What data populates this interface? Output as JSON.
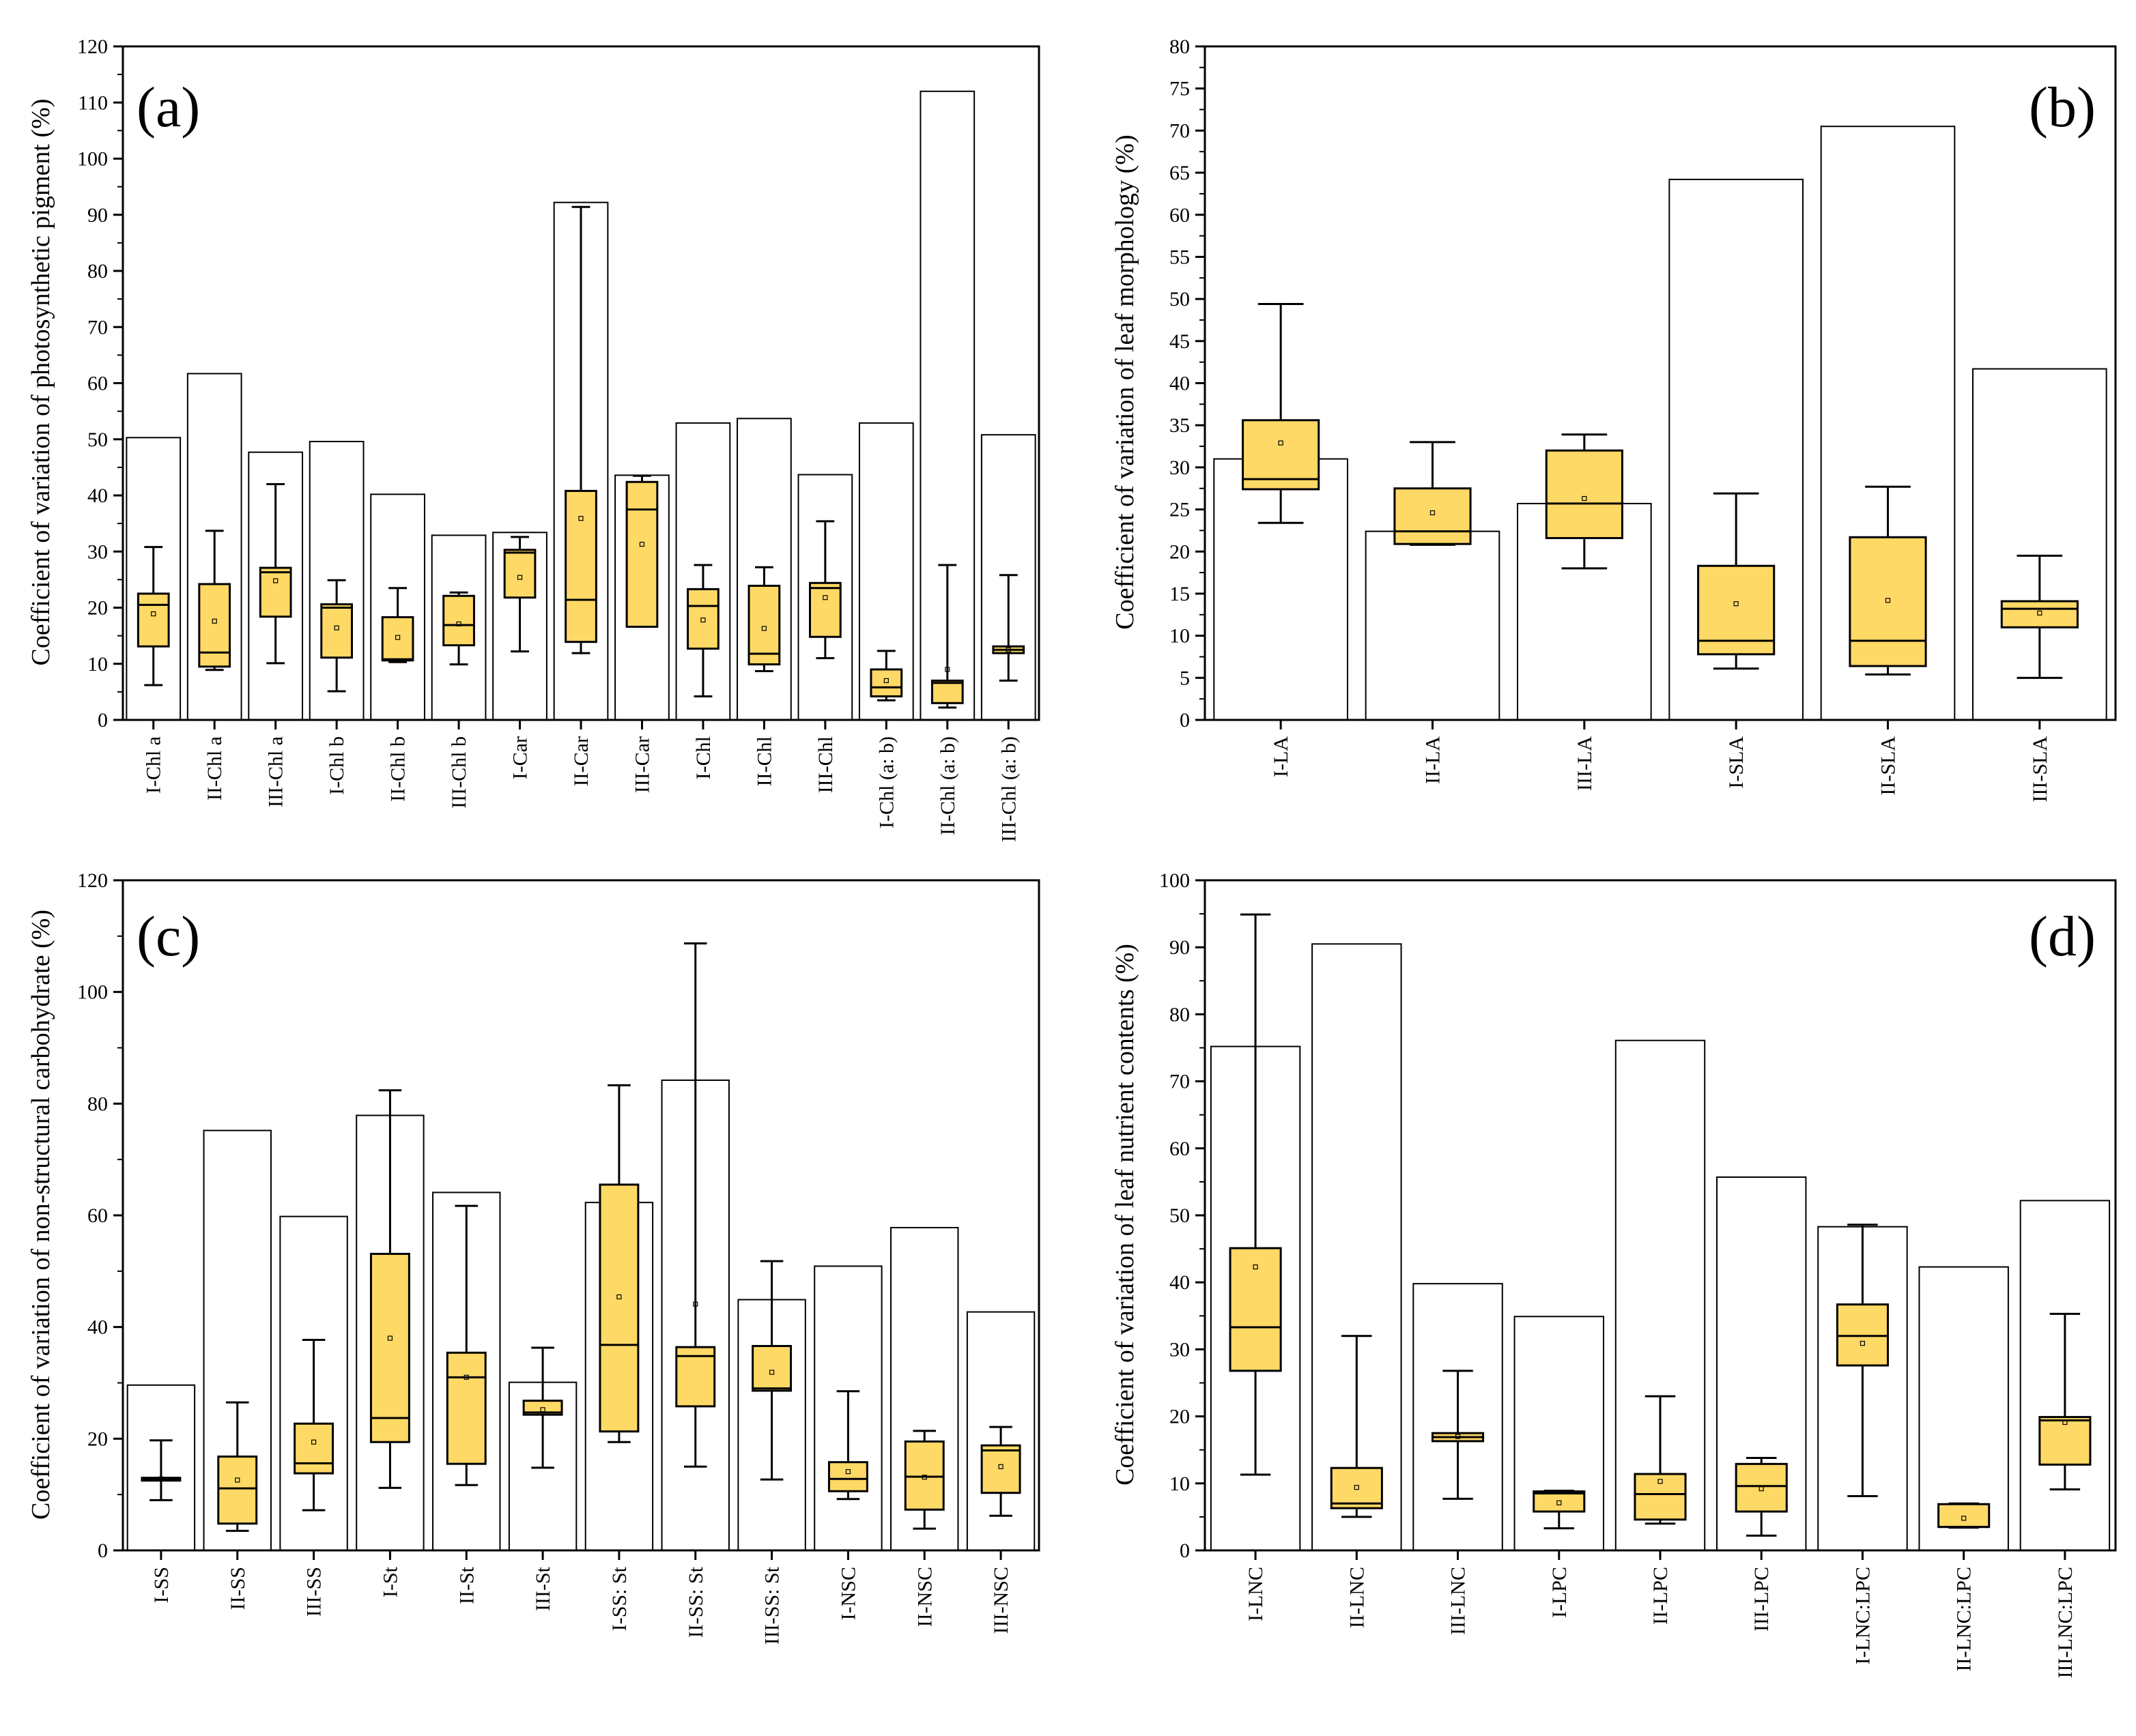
{
  "colors": {
    "box_fill": "#FFD966",
    "bar_stroke": "#000000",
    "background": "#FFFFFF"
  },
  "chart_data": [
    {
      "panel": "(a)",
      "type": "bar+box",
      "ylabel": "Coefficient of variation of photosynthetic pigment (%)",
      "ylim": [
        0,
        120
      ],
      "ytick_step": 10,
      "ytick_labels": [
        "0",
        "10",
        "20",
        "30",
        "40",
        "50",
        "60",
        "70",
        "80",
        "90",
        "100",
        "110",
        "120"
      ],
      "categories": [
        "I-Chl a",
        "II-Chl a",
        "III-Chl a",
        "I-Chl b",
        "II-Chl b",
        "III-Chl b",
        "I-Car",
        "II-Car",
        "III-Car",
        "I-Chl",
        "II-Chl",
        "III-Chl",
        "I-Chl (a: b)",
        "II-Chl (a: b)",
        "III-Chl (a: b)"
      ],
      "bar_values": [
        50.3,
        61.7,
        47.7,
        49.6,
        40.2,
        32.9,
        33.4,
        92.2,
        43.6,
        52.9,
        53.7,
        43.7,
        52.9,
        112.0,
        50.8
      ],
      "boxes": [
        {
          "min": 6.2,
          "q1": 13.1,
          "median": 20.5,
          "q3": 22.5,
          "max": 30.8,
          "mean": 18.9
        },
        {
          "min": 8.9,
          "q1": 9.5,
          "median": 12.0,
          "q3": 24.2,
          "max": 33.7,
          "mean": 17.6
        },
        {
          "min": 10.1,
          "q1": 18.4,
          "median": 26.3,
          "q3": 27.1,
          "max": 42.0,
          "mean": 24.8
        },
        {
          "min": 5.1,
          "q1": 11.1,
          "median": 20.0,
          "q3": 20.6,
          "max": 24.9,
          "mean": 16.4
        },
        {
          "min": 10.3,
          "q1": 10.6,
          "median": 10.8,
          "q3": 18.3,
          "max": 23.5,
          "mean": 14.7
        },
        {
          "min": 9.9,
          "q1": 13.3,
          "median": 16.9,
          "q3": 22.1,
          "max": 22.7,
          "mean": 17.1
        },
        {
          "min": 12.2,
          "q1": 21.8,
          "median": 29.8,
          "q3": 30.3,
          "max": 32.6,
          "mean": 25.4
        },
        {
          "min": 11.9,
          "q1": 13.9,
          "median": 21.4,
          "q3": 40.8,
          "max": 91.4,
          "mean": 35.9
        },
        {
          "min": 16.6,
          "q1": 16.6,
          "median": 37.5,
          "q3": 42.4,
          "max": 43.5,
          "mean": 31.3
        },
        {
          "min": 4.2,
          "q1": 12.7,
          "median": 20.3,
          "q3": 23.3,
          "max": 27.6,
          "mean": 17.8
        },
        {
          "min": 8.7,
          "q1": 9.9,
          "median": 11.8,
          "q3": 23.9,
          "max": 27.2,
          "mean": 16.3
        },
        {
          "min": 11.0,
          "q1": 14.8,
          "median": 23.5,
          "q3": 24.4,
          "max": 35.4,
          "mean": 21.8
        },
        {
          "min": 3.5,
          "q1": 4.2,
          "median": 5.8,
          "q3": 9.0,
          "max": 12.3,
          "mean": 7.0
        },
        {
          "min": 2.2,
          "q1": 3.0,
          "median": 6.6,
          "q3": 7.0,
          "max": 27.6,
          "mean": 9.0
        },
        {
          "min": 7.0,
          "q1": 11.9,
          "median": 12.5,
          "q3": 13.1,
          "max": 25.8,
          "mean": 12.5
        }
      ]
    },
    {
      "panel": "(b)",
      "type": "bar+box",
      "ylabel": "Coefficient of variation of leaf morphology (%)",
      "ylim": [
        0,
        80
      ],
      "ytick_step": 5,
      "ytick_labels": [
        "0",
        "5",
        "10",
        "15",
        "20",
        "25",
        "30",
        "35",
        "40",
        "45",
        "50",
        "55",
        "60",
        "65",
        "70",
        "75",
        "80"
      ],
      "categories": [
        "I-LA",
        "II-LA",
        "III-LA",
        "I-SLA",
        "II-SLA",
        "III-SLA"
      ],
      "bar_values": [
        31.0,
        22.4,
        25.7,
        64.2,
        70.5,
        41.7
      ],
      "boxes": [
        {
          "min": 23.4,
          "q1": 27.4,
          "median": 28.6,
          "q3": 35.6,
          "max": 49.4,
          "mean": 32.9
        },
        {
          "min": 20.8,
          "q1": 20.9,
          "median": 22.4,
          "q3": 27.5,
          "max": 33.0,
          "mean": 24.6
        },
        {
          "min": 18.0,
          "q1": 21.6,
          "median": 25.7,
          "q3": 32.0,
          "max": 33.9,
          "mean": 26.3
        },
        {
          "min": 6.1,
          "q1": 7.8,
          "median": 9.4,
          "q3": 18.3,
          "max": 26.9,
          "mean": 13.8
        },
        {
          "min": 5.4,
          "q1": 6.4,
          "median": 9.4,
          "q3": 21.7,
          "max": 27.7,
          "mean": 14.2
        },
        {
          "min": 5.0,
          "q1": 11.0,
          "median": 13.2,
          "q3": 14.1,
          "max": 19.5,
          "mean": 12.7
        }
      ]
    },
    {
      "panel": "(c)",
      "type": "bar+box",
      "ylabel": "Coefficient of variation of non-structural carbohydrate (%)",
      "ylim": [
        0,
        120
      ],
      "ytick_step": 20,
      "ytick_labels": [
        "0",
        "20",
        "40",
        "60",
        "80",
        "100",
        "120"
      ],
      "categories": [
        "I-SS",
        "II-SS",
        "III-SS",
        "I-St",
        "II-St",
        "III-St",
        "I-SS: St",
        "II-SS: St",
        "III-SS: St",
        "I-NSC",
        "II-NSC",
        "III-NSC"
      ],
      "bar_values": [
        29.6,
        75.2,
        59.8,
        77.9,
        64.1,
        30.1,
        62.3,
        84.2,
        44.9,
        50.9,
        57.8,
        42.7
      ],
      "boxes": [
        {
          "min": 9.0,
          "q1": 12.5,
          "median": 12.8,
          "q3": 13.0,
          "max": 19.7,
          "mean": 12.8
        },
        {
          "min": 3.5,
          "q1": 4.8,
          "median": 11.1,
          "q3": 16.8,
          "max": 26.5,
          "mean": 12.6
        },
        {
          "min": 7.2,
          "q1": 13.8,
          "median": 15.6,
          "q3": 22.7,
          "max": 37.7,
          "mean": 19.4
        },
        {
          "min": 11.2,
          "q1": 19.4,
          "median": 23.7,
          "q3": 53.1,
          "max": 82.4,
          "mean": 38.0
        },
        {
          "min": 11.7,
          "q1": 15.5,
          "median": 31.0,
          "q3": 35.4,
          "max": 61.7,
          "mean": 31.0
        },
        {
          "min": 14.8,
          "q1": 24.3,
          "median": 24.7,
          "q3": 26.8,
          "max": 36.3,
          "mean": 25.2
        },
        {
          "min": 19.4,
          "q1": 21.3,
          "median": 36.8,
          "q3": 65.5,
          "max": 83.3,
          "mean": 45.4
        },
        {
          "min": 15.0,
          "q1": 25.8,
          "median": 34.8,
          "q3": 36.4,
          "max": 108.7,
          "mean": 44.1
        },
        {
          "min": 12.7,
          "q1": 28.6,
          "median": 29.0,
          "q3": 36.6,
          "max": 51.8,
          "mean": 31.9
        },
        {
          "min": 9.2,
          "q1": 10.6,
          "median": 12.8,
          "q3": 15.8,
          "max": 28.5,
          "mean": 14.1
        },
        {
          "min": 3.9,
          "q1": 7.3,
          "median": 13.2,
          "q3": 19.5,
          "max": 21.4,
          "mean": 13.1
        },
        {
          "min": 6.2,
          "q1": 10.3,
          "median": 17.9,
          "q3": 18.8,
          "max": 22.1,
          "mean": 15.0
        }
      ]
    },
    {
      "panel": "(d)",
      "type": "bar+box",
      "ylabel": "Coefficient of variation of leaf nutrient contents (%)",
      "ylim": [
        0,
        100
      ],
      "ytick_step": 10,
      "ytick_labels": [
        "0",
        "10",
        "20",
        "30",
        "40",
        "50",
        "60",
        "70",
        "80",
        "90",
        "100"
      ],
      "categories": [
        "I-LNC",
        "II-LNC",
        "III-LNC",
        "I-LPC",
        "II-LPC",
        "III-LPC",
        "I-LNC:LPC",
        "II-LNC:LPC",
        "III-LNC:LPC"
      ],
      "bar_values": [
        75.2,
        90.5,
        39.8,
        34.9,
        76.1,
        55.7,
        48.3,
        42.3,
        52.2
      ],
      "boxes": [
        {
          "min": 11.3,
          "q1": 26.8,
          "median": 33.3,
          "q3": 45.1,
          "max": 94.9,
          "mean": 42.3
        },
        {
          "min": 5.0,
          "q1": 6.3,
          "median": 7.0,
          "q3": 12.3,
          "max": 32.0,
          "mean": 9.4
        },
        {
          "min": 7.7,
          "q1": 16.3,
          "median": 16.9,
          "q3": 17.5,
          "max": 26.8,
          "mean": 17.0
        },
        {
          "min": 3.3,
          "q1": 5.8,
          "median": 8.5,
          "q3": 8.8,
          "max": 8.9,
          "mean": 7.1
        },
        {
          "min": 4.0,
          "q1": 4.6,
          "median": 8.4,
          "q3": 11.4,
          "max": 23.0,
          "mean": 10.3
        },
        {
          "min": 2.2,
          "q1": 5.8,
          "median": 9.6,
          "q3": 12.9,
          "max": 13.8,
          "mean": 9.2
        },
        {
          "min": 8.1,
          "q1": 27.6,
          "median": 32.0,
          "q3": 36.7,
          "max": 48.6,
          "mean": 30.9
        },
        {
          "min": 3.4,
          "q1": 3.5,
          "median": 3.5,
          "q3": 6.9,
          "max": 7.0,
          "mean": 4.8
        },
        {
          "min": 9.1,
          "q1": 12.8,
          "median": 19.4,
          "q3": 19.9,
          "max": 35.3,
          "mean": 19.1
        }
      ]
    }
  ]
}
